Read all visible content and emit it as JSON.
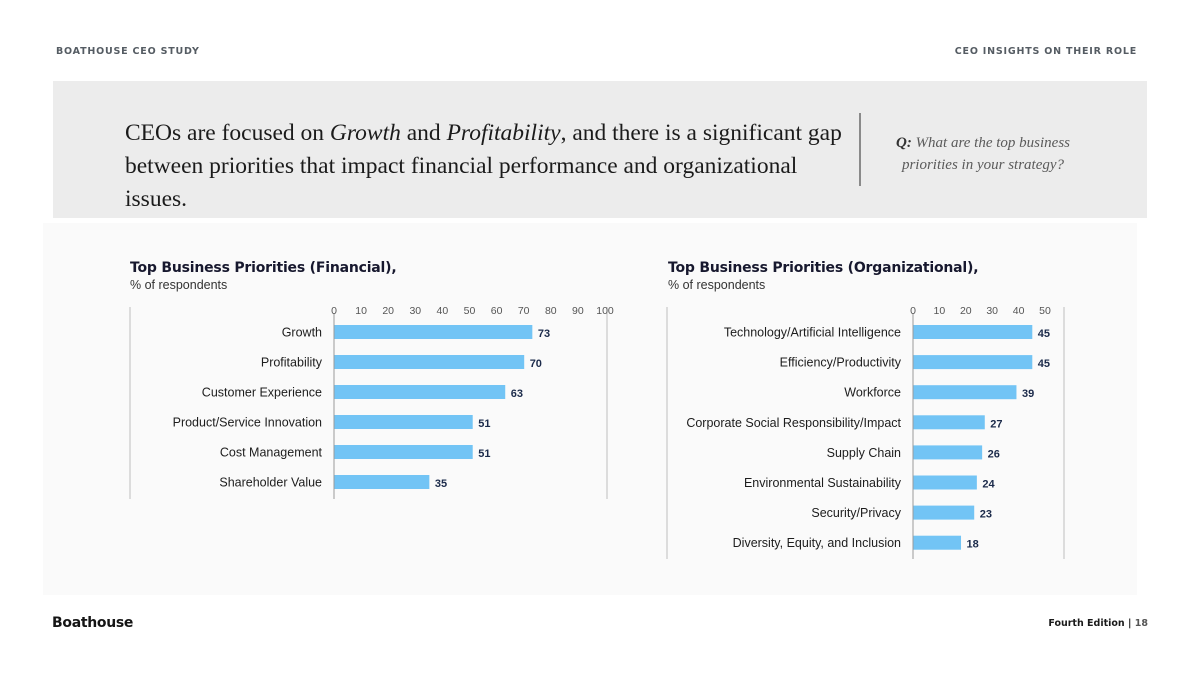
{
  "header": {
    "left_label": "BOATHOUSE CEO STUDY",
    "right_label": "CEO INSIGHTS ON THEIR ROLE"
  },
  "banner": {
    "headline_part1": "CEOs are focused on ",
    "headline_em1": "Growth",
    "headline_part2": " and ",
    "headline_em2": "Profitability",
    "headline_part3": ", and there is a significant gap between priorities that impact financial performance and organizational issues.",
    "question_prefix": "Q:",
    "question_text": " What are the top business priorities in your strategy?"
  },
  "chart_data": [
    {
      "type": "bar",
      "orientation": "horizontal",
      "title": "Top Business Priorities (Financial),",
      "subtitle": "% of respondents",
      "categories": [
        "Growth",
        "Profitability",
        "Customer Experience",
        "Product/Service Innovation",
        "Cost Management",
        "Shareholder Value"
      ],
      "values": [
        73,
        70,
        63,
        51,
        51,
        35
      ],
      "xlim": [
        0,
        100
      ],
      "ticks": [
        0,
        10,
        20,
        30,
        40,
        50,
        60,
        70,
        80,
        90,
        100
      ],
      "bar_color": "#72c4f5",
      "grid": false
    },
    {
      "type": "bar",
      "orientation": "horizontal",
      "title": "Top Business Priorities (Organizational),",
      "subtitle": "% of respondents",
      "categories": [
        "Technology/Artificial Intelligence",
        "Efficiency/Productivity",
        "Workforce",
        "Corporate Social Responsibility/Impact",
        "Supply Chain",
        "Environmental Sustainability",
        "Security/Privacy",
        "Diversity, Equity, and Inclusion"
      ],
      "values": [
        45,
        45,
        39,
        27,
        26,
        24,
        23,
        18
      ],
      "xlim": [
        0,
        50
      ],
      "ticks": [
        0,
        10,
        20,
        30,
        40,
        50
      ],
      "bar_color": "#72c4f5",
      "grid": false
    }
  ],
  "footer": {
    "brand": "Boathouse",
    "edition": "Fourth Edition",
    "separator": " | ",
    "page": "18"
  }
}
